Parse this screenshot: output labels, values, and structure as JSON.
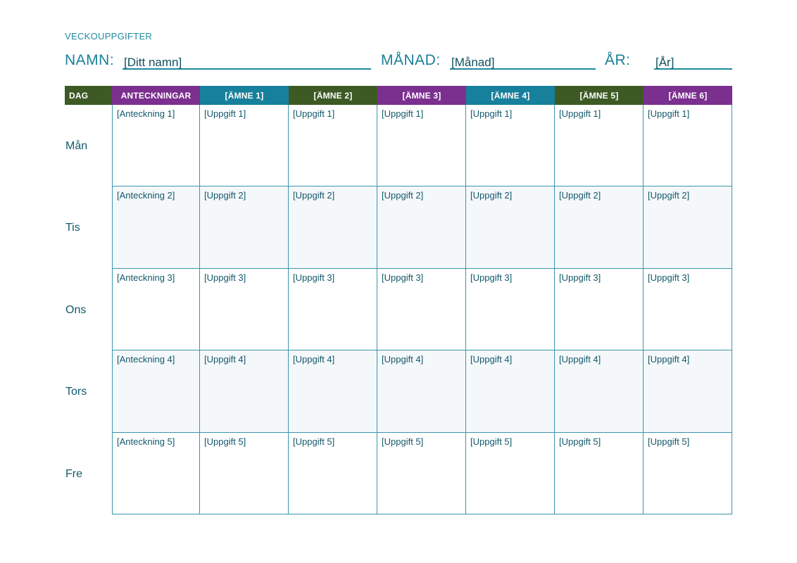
{
  "header": {
    "title": "VECKOUPPGIFTER",
    "name_label": "NAMN:",
    "name_value": "[Ditt namn]",
    "month_label": "MÅNAD:",
    "month_value": "[Månad]",
    "year_label": "ÅR:",
    "year_value": "[År]"
  },
  "table": {
    "col_day": "DAG",
    "col_notes": "ANTECKNINGAR",
    "subjects": [
      "[ÄMNE 1]",
      "[ÄMNE 2]",
      "[ÄMNE 3]",
      "[ÄMNE 4]",
      "[ÄMNE 5]",
      "[ÄMNE 6]"
    ],
    "rows": [
      {
        "day": "Mån",
        "note": "[Anteckning 1]",
        "task": "[Uppgift 1]"
      },
      {
        "day": "Tis",
        "note": "[Anteckning 2]",
        "task": "[Uppgift 2]"
      },
      {
        "day": "Ons",
        "note": "[Anteckning 3]",
        "task": "[Uppgift 3]"
      },
      {
        "day": "Tors",
        "note": "[Anteckning 4]",
        "task": "[Uppgift 4]"
      },
      {
        "day": "Fre",
        "note": "[Anteckning 5]",
        "task": "[Uppgift 5]"
      }
    ]
  },
  "colors": {
    "green": "#3d5a24",
    "purple": "#7b2f8e",
    "teal": "#17809c",
    "text": "#1a7f98"
  }
}
